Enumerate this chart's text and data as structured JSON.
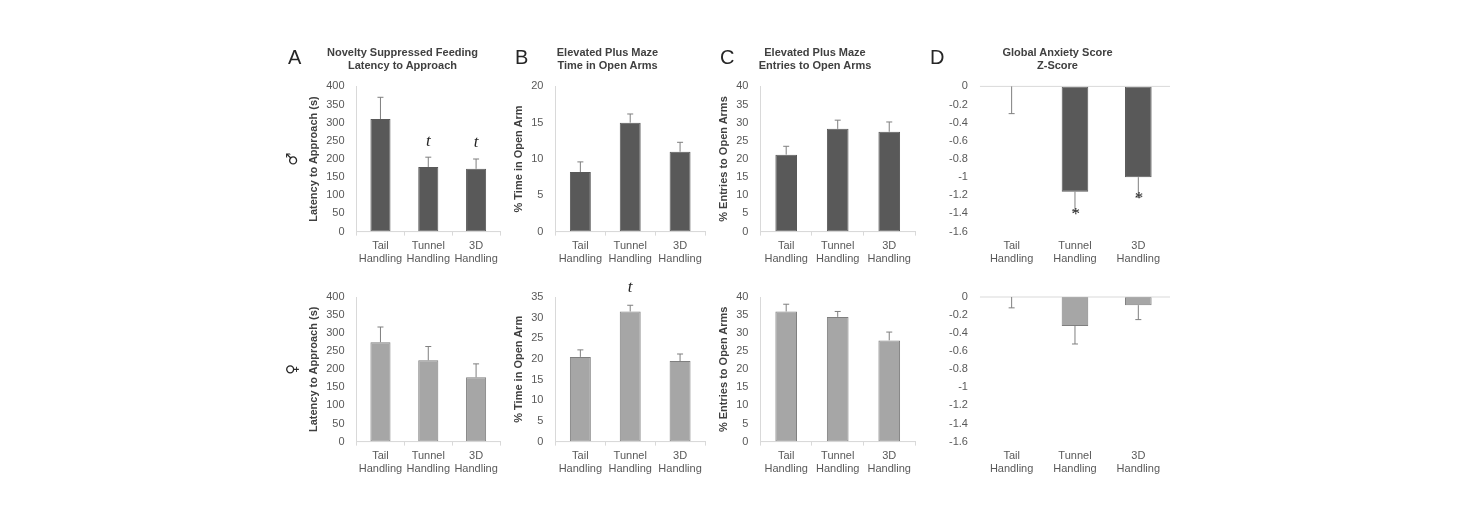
{
  "chart_data": [
    {
      "type": "bar",
      "title": "Novelty Suppressed Feeding\nLatency to Approach",
      "ylabel": "Latency to Approach (s)",
      "categories": [
        "Tail Handling",
        "Tunnel Handling",
        "3D Handling"
      ],
      "values": [
        310,
        178,
        173
      ],
      "errors": [
        [
          310,
          370
        ],
        [
          178,
          205
        ],
        [
          173,
          200
        ]
      ],
      "color": "#595959",
      "ylim": [
        0,
        400
      ],
      "yticks": [
        0,
        50,
        100,
        150,
        200,
        250,
        300,
        350,
        400
      ],
      "grid": false,
      "annotations": [
        "A",
        "♂",
        "t",
        "t"
      ]
    },
    {
      "type": "bar",
      "title": "Elevated Plus Maze\nTime in Open Arms",
      "ylabel": "% Time in Open Arm",
      "categories": [
        "Tail Handling",
        "Tunnel Handling",
        "3D Handling"
      ],
      "values": [
        8.2,
        15,
        11
      ],
      "errors": [
        [
          8.2,
          9.6
        ],
        [
          15,
          16.2
        ],
        [
          11,
          12.3
        ]
      ],
      "color": "#595959",
      "ylim": [
        0,
        20
      ],
      "yticks": [
        0,
        5,
        10,
        15,
        20
      ],
      "grid": false,
      "annotations": [
        "B"
      ]
    },
    {
      "type": "bar",
      "title": "Elevated Plus Maze\nEntries to Open Arms",
      "ylabel": "% Entries to Open Arms",
      "categories": [
        "Tail Handling",
        "Tunnel Handling",
        "3D Handling"
      ],
      "values": [
        21.2,
        28.3,
        27.5
      ],
      "errors": [
        [
          21.2,
          23.5
        ],
        [
          28.3,
          30.7
        ],
        [
          27.5,
          30.2
        ]
      ],
      "color": "#595959",
      "ylim": [
        0,
        40
      ],
      "yticks": [
        0,
        5,
        10,
        15,
        20,
        25,
        30,
        35,
        40
      ],
      "grid": false,
      "annotations": [
        "C"
      ]
    },
    {
      "type": "bar",
      "title": "Global Anxiety Score\nZ-Score",
      "categories": [
        "Tail Handling",
        "Tunnel Handling",
        "3D Handling"
      ],
      "values": [
        0,
        -1.16,
        -1.0
      ],
      "errors": [
        [
          -0.3,
          0
        ],
        [
          -1.37,
          -1.16
        ],
        [
          -1.22,
          -1.0
        ]
      ],
      "color": "#595959",
      "ylim": [
        -1.6,
        0
      ],
      "yticks": [
        -1.6,
        -1.4,
        -1.2,
        -1,
        -0.8,
        -0.6,
        -0.4,
        -0.2,
        0
      ],
      "grid": false,
      "annotations": [
        "D",
        "*",
        "*"
      ]
    },
    {
      "type": "bar",
      "ylabel": "Latency to Approach (s)",
      "categories": [
        "Tail Handling",
        "Tunnel Handling",
        "3D Handling"
      ],
      "values": [
        275,
        225,
        178
      ],
      "errors": [
        [
          275,
          317
        ],
        [
          225,
          263
        ],
        [
          178,
          215
        ]
      ],
      "color": "#a6a6a6",
      "ylim": [
        0,
        400
      ],
      "yticks": [
        0,
        50,
        100,
        150,
        200,
        250,
        300,
        350,
        400
      ],
      "grid": false,
      "annotations": [
        "♀"
      ]
    },
    {
      "type": "bar",
      "ylabel": "% Time in Open Arm",
      "categories": [
        "Tail Handling",
        "Tunnel Handling",
        "3D Handling"
      ],
      "values": [
        20.5,
        31.5,
        19.5
      ],
      "errors": [
        [
          20.5,
          22.2
        ],
        [
          31.5,
          33
        ],
        [
          19.5,
          21.2
        ]
      ],
      "color": "#a6a6a6",
      "ylim": [
        0,
        35
      ],
      "yticks": [
        0,
        5,
        10,
        15,
        20,
        25,
        30,
        35
      ],
      "grid": false,
      "annotations": [
        "t"
      ]
    },
    {
      "type": "bar",
      "ylabel": "% Entries to Open Arms",
      "categories": [
        "Tail Handling",
        "Tunnel Handling",
        "3D Handling"
      ],
      "values": [
        36,
        34.5,
        28
      ],
      "errors": [
        [
          36,
          38
        ],
        [
          34.5,
          36
        ],
        [
          28,
          30.3
        ]
      ],
      "color": "#a6a6a6",
      "ylim": [
        0,
        40
      ],
      "yticks": [
        0,
        5,
        10,
        15,
        20,
        25,
        30,
        35,
        40
      ],
      "grid": false
    },
    {
      "type": "bar",
      "categories": [
        "Tail Handling",
        "Tunnel Handling",
        "3D Handling"
      ],
      "values": [
        0,
        -0.32,
        -0.09
      ],
      "errors": [
        [
          -0.12,
          0
        ],
        [
          -0.52,
          -0.32
        ],
        [
          -0.25,
          -0.09
        ]
      ],
      "color": "#a6a6a6",
      "ylim": [
        -1.6,
        0
      ],
      "yticks": [
        -1.6,
        -1.4,
        -1.2,
        -1,
        -0.8,
        -0.6,
        -0.4,
        -0.2,
        0
      ],
      "grid": false
    }
  ]
}
